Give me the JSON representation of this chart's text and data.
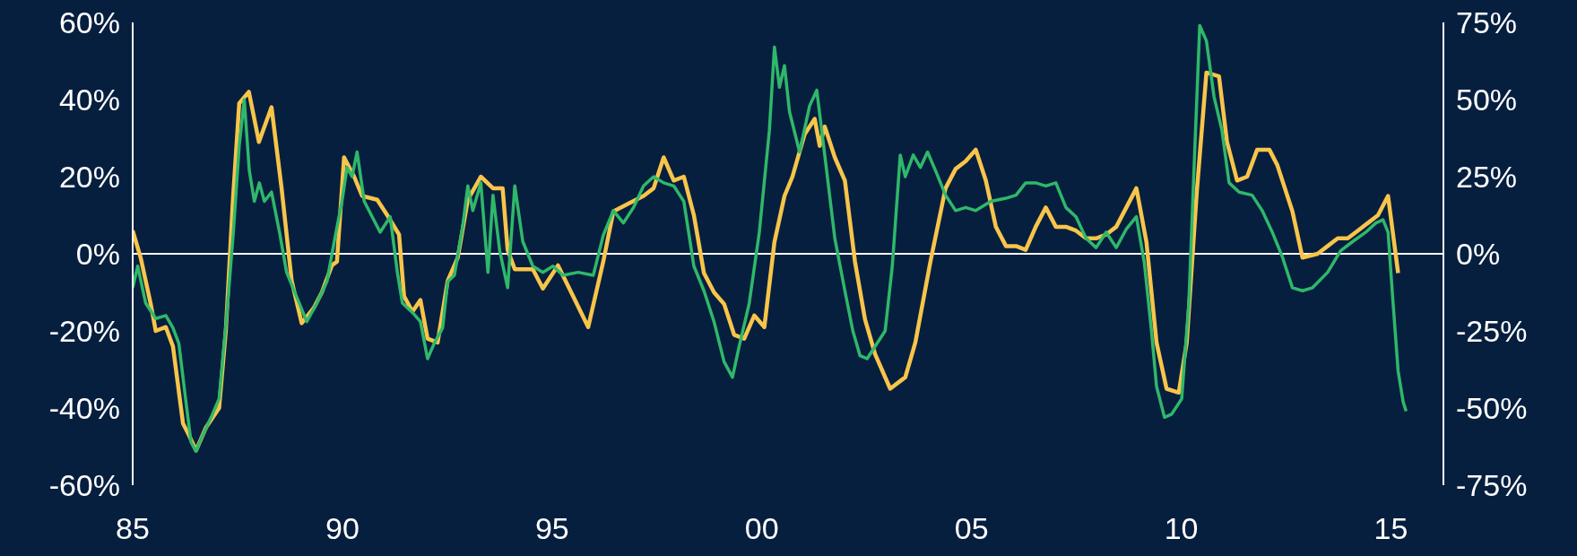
{
  "chart_data": {
    "type": "line",
    "xlim": [
      1985,
      2016.25
    ],
    "xticks": [
      {
        "value": 1985,
        "label": "85"
      },
      {
        "value": 1990,
        "label": "90"
      },
      {
        "value": 1995,
        "label": "95"
      },
      {
        "value": 2000,
        "label": "00"
      },
      {
        "value": 2005,
        "label": "05"
      },
      {
        "value": 2010,
        "label": "10"
      },
      {
        "value": 2015,
        "label": "15"
      }
    ],
    "ylim": [
      -60,
      60
    ],
    "yticks": [
      {
        "value": -60,
        "label": "-60%"
      },
      {
        "value": -40,
        "label": "-40%"
      },
      {
        "value": -20,
        "label": "-20%"
      },
      {
        "value": 0,
        "label": "0%"
      },
      {
        "value": 20,
        "label": "20%"
      },
      {
        "value": 40,
        "label": "40%"
      },
      {
        "value": 60,
        "label": "60%"
      }
    ],
    "y2lim": [
      -75,
      75
    ],
    "y2ticks": [
      {
        "value": -75,
        "label": "-75%"
      },
      {
        "value": -50,
        "label": "-50%"
      },
      {
        "value": -25,
        "label": "-25%"
      },
      {
        "value": 0,
        "label": "0%"
      },
      {
        "value": 25,
        "label": "25%"
      },
      {
        "value": 50,
        "label": "50%"
      },
      {
        "value": 75,
        "label": "75%"
      }
    ],
    "ref_lines": [
      {
        "axis": "y",
        "value": 0,
        "color": "#ffffff"
      }
    ],
    "series": [
      {
        "color": "#f8c54a",
        "x": [
          1985.0,
          1985.19,
          1985.43,
          1985.55,
          1985.79,
          1985.96,
          1986.2,
          1986.34,
          1986.51,
          1986.75,
          1987.06,
          1987.22,
          1987.39,
          1987.54,
          1987.77,
          1988.01,
          1988.31,
          1988.55,
          1988.79,
          1989.03,
          1989.32,
          1989.51,
          1989.75,
          1989.87,
          1990.04,
          1990.28,
          1990.47,
          1990.83,
          1991.07,
          1991.35,
          1991.47,
          1991.67,
          1991.86,
          1992.03,
          1992.27,
          1992.51,
          1992.75,
          1992.99,
          1993.3,
          1993.59,
          1993.82,
          1993.94,
          1994.11,
          1994.54,
          1994.78,
          1995.14,
          1995.5,
          1995.86,
          1996.22,
          1996.46,
          1996.82,
          1997.18,
          1997.42,
          1997.66,
          1997.9,
          1998.14,
          1998.38,
          1998.62,
          1998.86,
          1999.1,
          1999.34,
          1999.58,
          1999.82,
          2000.06,
          2000.3,
          2000.54,
          2000.73,
          2001.02,
          2001.26,
          2001.38,
          2001.5,
          2001.74,
          2001.98,
          2002.22,
          2002.46,
          2002.7,
          2003.06,
          2003.3,
          2003.42,
          2003.66,
          2004.02,
          2004.38,
          2004.62,
          2004.86,
          2005.1,
          2005.34,
          2005.58,
          2005.82,
          2006.06,
          2006.29,
          2006.53,
          2006.77,
          2007.01,
          2007.25,
          2007.49,
          2007.73,
          2007.97,
          2008.21,
          2008.45,
          2008.69,
          2008.93,
          2009.17,
          2009.41,
          2009.65,
          2009.94,
          2010.13,
          2010.37,
          2010.6,
          2010.9,
          2011.09,
          2011.33,
          2011.57,
          2011.81,
          2012.1,
          2012.29,
          2012.65,
          2012.89,
          2013.25,
          2013.49,
          2013.73,
          2013.97,
          2014.21,
          2014.45,
          2014.69,
          2014.93,
          2015.17
        ],
        "values": [
          6,
          -1,
          -13,
          -20,
          -19,
          -24,
          -44,
          -47,
          -51,
          -45,
          -40,
          -20,
          14,
          39,
          42,
          29,
          38,
          17,
          -7,
          -18,
          -14,
          -10,
          -3,
          -2,
          25,
          20,
          15,
          14,
          10,
          5,
          -11,
          -15,
          -12,
          -22,
          -23,
          -7,
          -1,
          14,
          20,
          17,
          17,
          1,
          -4,
          -4,
          -9,
          -3,
          -11,
          -19,
          -2,
          11,
          13,
          15,
          17,
          25,
          19,
          20,
          10,
          -5,
          -10,
          -13,
          -21,
          -22,
          -16,
          -19,
          3,
          15,
          20,
          31,
          35,
          28,
          33,
          25,
          19,
          -2,
          -17,
          -26,
          -35,
          -33,
          -32,
          -23,
          -2,
          17,
          22,
          24,
          27,
          19,
          7,
          2,
          2,
          1,
          7,
          12,
          7,
          7,
          6,
          4,
          4,
          5,
          7,
          12,
          17,
          3,
          -23,
          -35,
          -36,
          -23,
          16,
          47,
          46,
          29,
          19,
          20,
          27,
          27,
          23,
          11,
          -1,
          0,
          2,
          4,
          4,
          6,
          8,
          10,
          15,
          -5
        ]
      },
      {
        "axis": "y2",
        "color": "#2fb86a",
        "x": [
          1985.0,
          1985.12,
          1985.31,
          1985.55,
          1985.79,
          1985.96,
          1986.1,
          1986.27,
          1986.39,
          1986.51,
          1986.63,
          1986.87,
          1987.06,
          1987.23,
          1987.4,
          1987.54,
          1987.66,
          1987.78,
          1987.9,
          1988.02,
          1988.14,
          1988.31,
          1988.5,
          1988.67,
          1988.91,
          1989.15,
          1989.39,
          1989.63,
          1989.82,
          1989.99,
          1990.11,
          1990.23,
          1990.35,
          1990.52,
          1990.71,
          1990.9,
          1991.14,
          1991.31,
          1991.43,
          1991.67,
          1991.86,
          1992.03,
          1992.19,
          1992.39,
          1992.51,
          1992.67,
          1992.87,
          1992.99,
          1993.11,
          1993.3,
          1993.47,
          1993.59,
          1993.75,
          1993.94,
          1994.11,
          1994.3,
          1994.54,
          1994.78,
          1995.02,
          1995.26,
          1995.62,
          1995.98,
          1996.22,
          1996.46,
          1996.7,
          1996.94,
          1997.18,
          1997.42,
          1997.66,
          1997.9,
          1998.14,
          1998.38,
          1998.62,
          1998.86,
          1999.1,
          1999.3,
          1999.46,
          1999.7,
          1999.94,
          2000.18,
          2000.3,
          2000.42,
          2000.54,
          2000.66,
          2000.9,
          2001.14,
          2001.31,
          2001.5,
          2001.74,
          2001.98,
          2002.17,
          2002.34,
          2002.51,
          2002.7,
          2002.94,
          2003.11,
          2003.3,
          2003.42,
          2003.61,
          2003.78,
          2003.95,
          2004.14,
          2004.38,
          2004.62,
          2004.86,
          2005.1,
          2005.46,
          2005.82,
          2006.06,
          2006.29,
          2006.53,
          2006.77,
          2007.01,
          2007.25,
          2007.49,
          2007.73,
          2007.97,
          2008.21,
          2008.45,
          2008.69,
          2008.93,
          2009.12,
          2009.29,
          2009.41,
          2009.6,
          2009.77,
          2010.01,
          2010.18,
          2010.32,
          2010.44,
          2010.6,
          2010.78,
          2010.97,
          2011.14,
          2011.38,
          2011.69,
          2011.93,
          2012.17,
          2012.41,
          2012.65,
          2012.89,
          2013.13,
          2013.49,
          2013.8,
          2014.09,
          2014.4,
          2014.64,
          2014.81,
          2014.93,
          2015.05,
          2015.17,
          2015.29,
          2015.36
        ],
        "values": [
          -11,
          -4,
          -16,
          -21,
          -20,
          -24,
          -29,
          -48,
          -61,
          -64,
          -60,
          -53,
          -47,
          -22,
          7,
          35,
          50,
          27,
          17,
          23,
          17,
          20,
          7,
          -6,
          -14,
          -22,
          -16,
          -9,
          5,
          17,
          28,
          25,
          33,
          17,
          12,
          7,
          12,
          -6,
          -16,
          -19,
          -22,
          -34,
          -29,
          -24,
          -9,
          -7,
          9,
          22,
          14,
          23,
          -6,
          19,
          1,
          -11,
          22,
          4,
          -4,
          -6,
          -4,
          -7,
          -6,
          -7,
          6,
          14,
          10,
          15,
          22,
          25,
          23,
          22,
          17,
          -4,
          -12,
          -22,
          -35,
          -40,
          -30,
          -16,
          7,
          40,
          67,
          54,
          61,
          46,
          33,
          48,
          53,
          32,
          5,
          -12,
          -25,
          -33,
          -34,
          -30,
          -25,
          -4,
          32,
          25,
          32,
          28,
          33,
          27,
          19,
          14,
          15,
          14,
          17,
          18,
          19,
          23,
          23,
          22,
          23,
          15,
          12,
          5,
          2,
          7,
          2,
          8,
          12,
          -3,
          -25,
          -43,
          -53,
          -52,
          -47,
          -16,
          33,
          74,
          69,
          51,
          40,
          23,
          20,
          19,
          14,
          7,
          -1,
          -11,
          -12,
          -11,
          -6,
          1,
          4,
          7,
          10,
          11,
          7,
          -16,
          -38,
          -48,
          -51
        ]
      }
    ]
  }
}
